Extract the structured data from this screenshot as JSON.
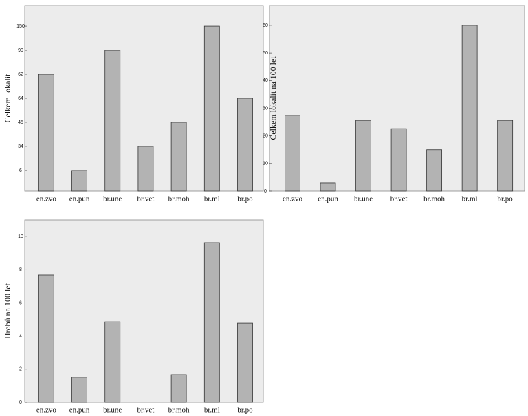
{
  "chart_data": [
    {
      "type": "bar",
      "ylabel": "Celkem lokalit",
      "categories": [
        "en.zvo",
        "en.pun",
        "br.une",
        "br.vet",
        "br.moh",
        "br.ml",
        "br.po"
      ],
      "values": [
        5,
        1,
        6,
        2,
        3,
        7,
        4
      ],
      "color": "#b3b3b3",
      "ylim": [
        0.14,
        7.86
      ],
      "yticks": [
        {
          "value": 1,
          "label": "6"
        },
        {
          "value": 2,
          "label": "34"
        },
        {
          "value": 3,
          "label": "45"
        },
        {
          "value": 4,
          "label": "64"
        },
        {
          "value": 5,
          "label": "62"
        },
        {
          "value": 6,
          "label": "90"
        },
        {
          "value": 7,
          "label": "150"
        }
      ]
    },
    {
      "type": "bar",
      "ylabel": "Celkem lokalit na 100 let",
      "categories": [
        "en.zvo",
        "en.pun",
        "br.une",
        "br.vet",
        "br.moh",
        "br.ml",
        "br.po"
      ],
      "values": [
        27.4,
        3,
        25.6,
        22.6,
        15,
        60,
        25.6
      ],
      "color": "#b3b3b3",
      "ylim": [
        0,
        67.2
      ],
      "yticks": [
        0,
        10,
        20,
        30,
        40,
        50,
        60
      ]
    },
    {
      "type": "bar",
      "ylabel": "Hrobů na 100 let",
      "categories": [
        "en.zvo",
        "en.pun",
        "br.une",
        "br.vet",
        "br.moh",
        "br.ml",
        "br.po"
      ],
      "values": [
        7.68,
        1.5,
        4.85,
        0,
        1.66,
        9.63,
        4.77
      ],
      "color": "#b3b3b3",
      "ylim": [
        0,
        11
      ],
      "yticks": [
        0,
        2,
        4,
        6,
        8,
        10
      ]
    }
  ]
}
